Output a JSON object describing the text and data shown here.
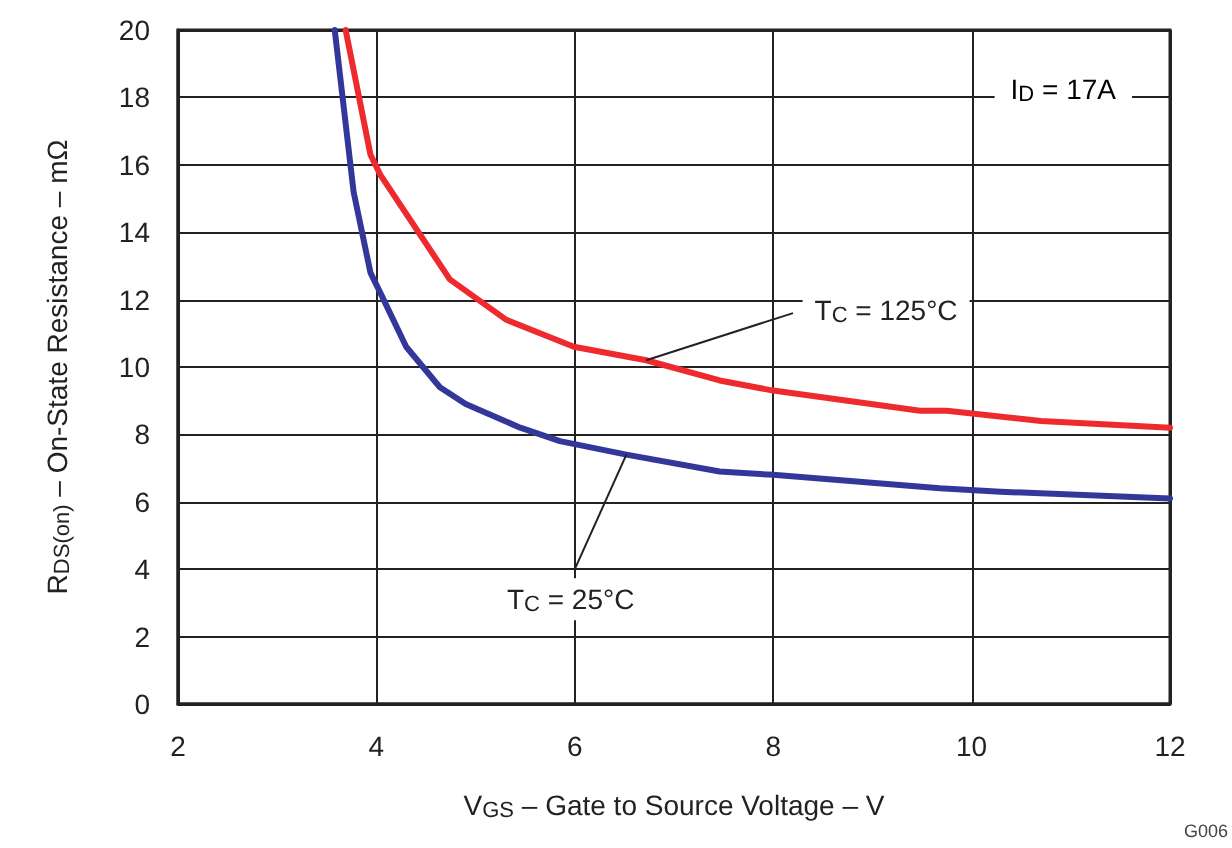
{
  "chart_data": {
    "type": "line",
    "xlabel": "V$_{GS}$ – Gate to Source Voltage – V",
    "ylabel": "R$_{DS(on)}$ – On-State Resistance – mΩ",
    "annotations": [
      "I$_{D}$ = 17A",
      "G006"
    ],
    "series": [
      {
        "name": "T$_{C}$ = 125°C",
        "color": "#ee2a2e",
        "x": [
          3.69,
          3.94,
          4.04,
          4.74,
          5.31,
          5.99,
          6.72,
          7.46,
          8.0,
          9.48,
          9.75,
          10.7,
          12
        ],
        "values": [
          20,
          16.3,
          15.7,
          12.6,
          11.4,
          10.6,
          10.2,
          9.6,
          9.3,
          8.7,
          8.7,
          8.4,
          8.2
        ]
      },
      {
        "name": "T$_{C}$ = 25°C",
        "color": "#33379a",
        "x": [
          3.58,
          3.77,
          3.94,
          4.04,
          4.3,
          4.64,
          4.9,
          5.45,
          5.85,
          6.52,
          7.46,
          8.0,
          9.68,
          10.29,
          12
        ],
        "values": [
          20,
          15.2,
          12.8,
          12.2,
          10.6,
          9.4,
          8.9,
          8.2,
          7.8,
          7.4,
          6.9,
          6.8,
          6.4,
          6.3,
          6.1
        ]
      }
    ],
    "xlim": [
      2,
      12
    ],
    "xticks": [
      2,
      4,
      6,
      8,
      10,
      12
    ],
    "ylim": [
      0,
      20
    ],
    "yticks": [
      0,
      2,
      4,
      6,
      8,
      10,
      12,
      14,
      16,
      18,
      20
    ],
    "grid": true,
    "legend": false,
    "marker": "none",
    "line_style": "solid"
  }
}
